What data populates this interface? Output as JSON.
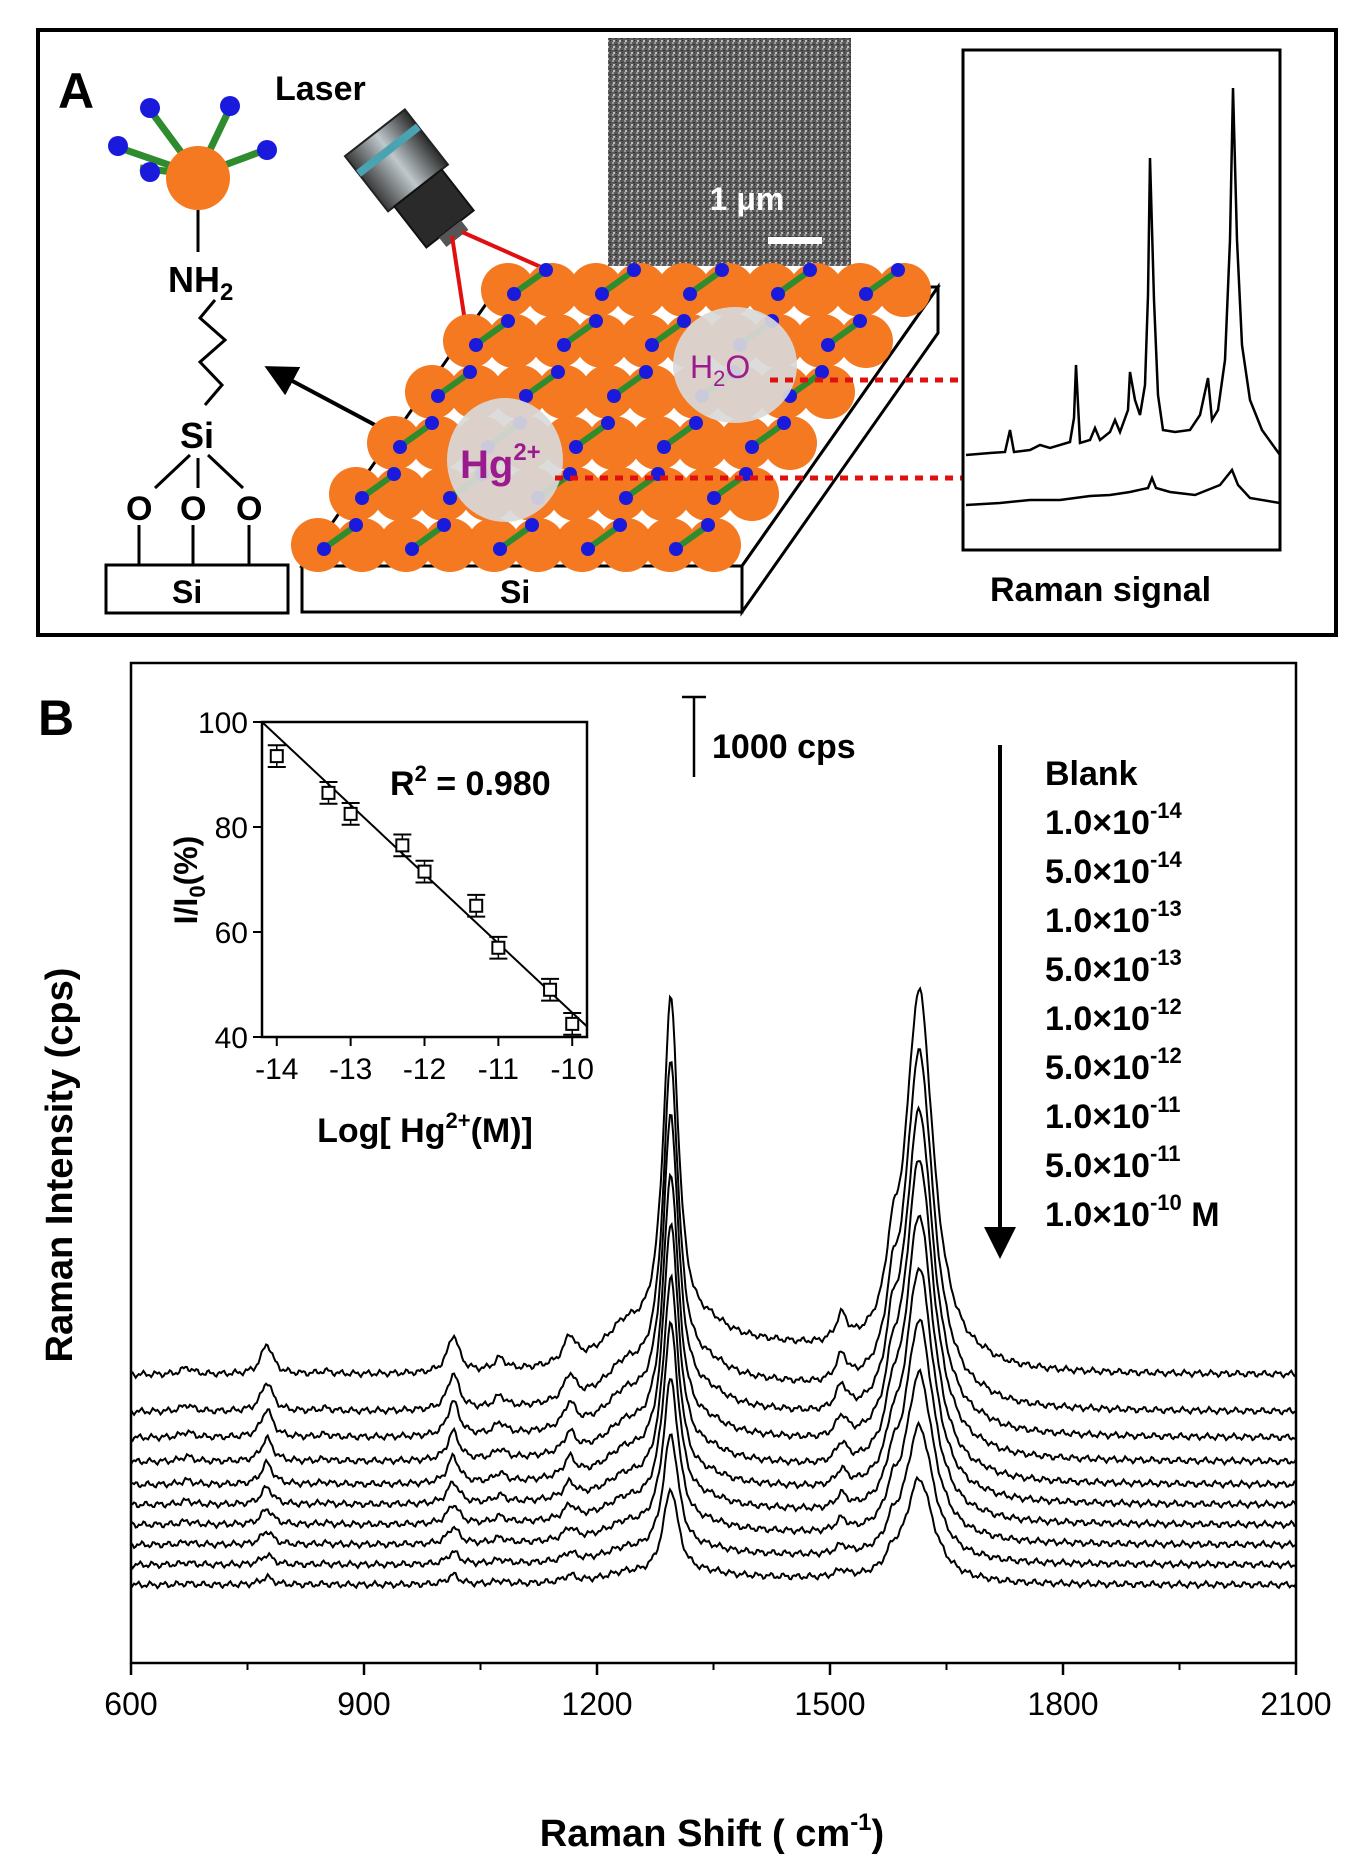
{
  "panel_a": {
    "letter": "A",
    "laser_label": "Laser",
    "amine_n": "N",
    "amine_h2": "H",
    "amine_sub": "2",
    "silane_si": "Si",
    "oxygen": "O",
    "substrate_small": "Si",
    "substrate_large": "Si",
    "sem_scale": "1 μm",
    "h2o_h": "H",
    "h2o_sub": "2",
    "h2o_o": "O",
    "hg_base": "Hg",
    "hg_sup": "2+",
    "raman_signal_label": "Raman signal",
    "colors": {
      "nanoparticle": "#f47920",
      "ligand_end": "#1a1adc",
      "ligand_bond": "#2e8b2e",
      "laser_beam": "#e01010",
      "ion_text": "#9b1b8f",
      "droplet": "#d9d9d9"
    }
  },
  "panel_b": {
    "letter": "B",
    "scale_bar_label": "1000 cps",
    "concentration_labels": [
      {
        "base": "Blank",
        "exp": "",
        "unit": ""
      },
      {
        "base": "1.0×10",
        "exp": "-14",
        "unit": ""
      },
      {
        "base": "5.0×10",
        "exp": "-14",
        "unit": ""
      },
      {
        "base": "1.0×10",
        "exp": "-13",
        "unit": ""
      },
      {
        "base": "5.0×10",
        "exp": "-13",
        "unit": ""
      },
      {
        "base": "1.0×10",
        "exp": "-12",
        "unit": ""
      },
      {
        "base": "5.0×10",
        "exp": "-12",
        "unit": ""
      },
      {
        "base": "1.0×10",
        "exp": "-11",
        "unit": ""
      },
      {
        "base": "5.0×10",
        "exp": "-11",
        "unit": ""
      },
      {
        "base": "1.0×10",
        "exp": "-10",
        "unit": " M"
      }
    ]
  },
  "chart_data": [
    {
      "type": "line",
      "xlabel_pre": "Raman Shift ( cm",
      "xlabel_sup": "-1",
      "xlabel_post": ")",
      "ylabel": "Raman Intensity (cps)",
      "xlim": [
        600,
        2100
      ],
      "x_ticks": [
        "600",
        "900",
        "1200",
        "1500",
        "1800",
        "2100"
      ],
      "peaks_cm1": [
        672,
        775,
        1015,
        1075,
        1165,
        1235,
        1295,
        1345,
        1515,
        1580,
        1615
      ],
      "series_count": 10,
      "series_names": [
        "Blank",
        "1.0×10-14",
        "5.0×10-14",
        "1.0×10-13",
        "5.0×10-13",
        "1.0×10-12",
        "5.0×10-12",
        "1.0×10-11",
        "5.0×10-11",
        "1.0×10-10 M"
      ],
      "peak_1615_heights_cps": [
        4700,
        4400,
        4000,
        3700,
        3300,
        2900,
        2500,
        2100,
        1700,
        1300
      ],
      "peak_1295_heights_cps": [
        4300,
        4000,
        3700,
        3300,
        3000,
        2600,
        2300,
        1900,
        1500,
        1100
      ],
      "grid": false
    },
    {
      "type": "scatter",
      "xlabel_pre": "Log[ Hg",
      "xlabel_sup": "2+",
      "xlabel_post": "(M)]",
      "ylabel_pre": "I/I",
      "ylabel_sub": "0",
      "ylabel_post": "(%)",
      "xlim": [
        -14.2,
        -9.8
      ],
      "ylim": [
        40,
        100
      ],
      "x_ticks": [
        "-14",
        "-13",
        "-12",
        "-11",
        "-10"
      ],
      "y_ticks": [
        "40",
        "60",
        "80",
        "100"
      ],
      "annotation_pre": "R",
      "annotation_sup": "2",
      "annotation_post": " = 0.980",
      "points": [
        {
          "x": -14.0,
          "y": 93.5,
          "err": 1.5
        },
        {
          "x": -13.3,
          "y": 86.5,
          "err": 1.5
        },
        {
          "x": -13.0,
          "y": 82.5,
          "err": 1.5
        },
        {
          "x": -12.3,
          "y": 76.5,
          "err": 1.5
        },
        {
          "x": -12.0,
          "y": 71.5,
          "err": 1.5
        },
        {
          "x": -11.3,
          "y": 65.0,
          "err": 1.5
        },
        {
          "x": -11.0,
          "y": 57.0,
          "err": 1.5
        },
        {
          "x": -10.3,
          "y": 49.0,
          "err": 1.5
        },
        {
          "x": -10.0,
          "y": 42.5,
          "err": 1.5
        }
      ],
      "fit_line": {
        "x": [
          -14.2,
          -9.8
        ],
        "y": [
          100,
          42
        ]
      }
    }
  ]
}
